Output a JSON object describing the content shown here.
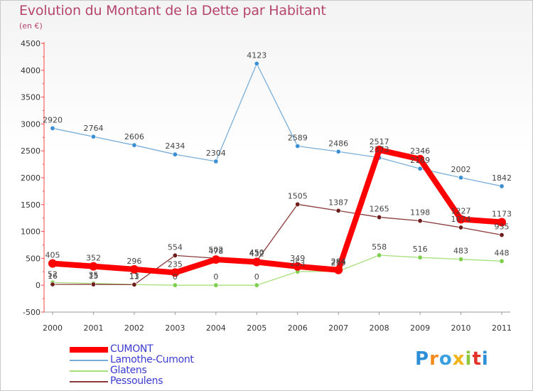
{
  "title": "Evolution du Montant de la Dette par Habitant",
  "subtitle": "(en €)",
  "logo": {
    "text": "Proxiti",
    "letters": [
      {
        "ch": "P",
        "color": "#2f8fd6"
      },
      {
        "ch": "r",
        "color": "#f28a1d"
      },
      {
        "ch": "o",
        "color": "#3aa0e0"
      },
      {
        "ch": "x",
        "color": "#f0b318"
      },
      {
        "ch": "i",
        "color": "#8cc63f"
      },
      {
        "ch": "t",
        "color": "#e2332a"
      },
      {
        "ch": "i",
        "color": "#2f8fd6"
      }
    ]
  },
  "chart_data": {
    "type": "line",
    "title": "Evolution du Montant de la Dette par Habitant",
    "ylabel": "(en €)",
    "x": [
      "2000",
      "2001",
      "2002",
      "2003",
      "2004",
      "2005",
      "2006",
      "2007",
      "2008",
      "2009",
      "2010",
      "2011"
    ],
    "ylim": [
      -500,
      4500
    ],
    "yticks": [
      "-500",
      "0",
      "500",
      "1000",
      "1500",
      "2000",
      "2500",
      "3000",
      "3500",
      "4000",
      "4500"
    ],
    "grid": false,
    "legend_position": "bottom-left",
    "series": [
      {
        "name": "CUMONT",
        "color": "#ff0000",
        "marker": "#ff0000",
        "values": [
          405,
          352,
          296,
          235,
          478,
          432,
          349,
          284,
          2517,
          2346,
          1227,
          1173
        ],
        "labels": [
          "405",
          "352",
          "296",
          "235",
          "478",
          "432",
          "349",
          "284",
          "2517",
          "2346",
          "1227",
          "1173"
        ]
      },
      {
        "name": "Lamothe-Cumont",
        "color": "#7aaed8",
        "marker": "#3c8fd2",
        "values": [
          2920,
          2764,
          2606,
          2434,
          2304,
          4123,
          2589,
          2486,
          2373,
          2169,
          2002,
          1842
        ],
        "labels": [
          "2920",
          "2764",
          "2606",
          "2434",
          "2304",
          "4123",
          "2589",
          "2486",
          "2373",
          "2169",
          "2002",
          "1842"
        ]
      },
      {
        "name": "Glatens",
        "color": "#a6e07a",
        "marker": "#7ccf4a",
        "values": [
          52,
          35,
          13,
          0,
          0,
          0,
          253,
          259,
          558,
          516,
          483,
          448
        ],
        "labels": [
          "52",
          "35",
          "13",
          "0",
          "0",
          "0",
          "253",
          "259",
          "558",
          "516",
          "483",
          "448"
        ]
      },
      {
        "name": "Pessoulens",
        "color": "#8a3a3a",
        "marker": "#6e1c1c",
        "values": [
          16,
          15,
          11,
          554,
          502,
          450,
          1505,
          1387,
          1265,
          1198,
          1074,
          935
        ],
        "labels": [
          "16",
          "15",
          "11",
          "554",
          "502",
          "450",
          "1505",
          "1387",
          "1265",
          "1198",
          "1074",
          "935"
        ]
      }
    ]
  }
}
